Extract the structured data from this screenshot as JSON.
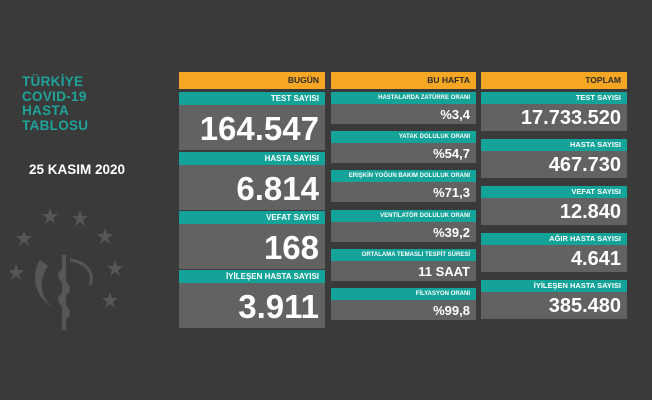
{
  "title_lines": [
    "TÜRKİYE",
    "COVID-19",
    "HASTA",
    "TABLOSU"
  ],
  "date": "25 KASIM 2020",
  "colors": {
    "accent": "#f5a623",
    "teal": "#13a398",
    "value_bg": "#626262",
    "title": "#1fa39a"
  },
  "today": {
    "header": "BUGÜN",
    "items": [
      {
        "label": "TEST SAYISI",
        "value": "164.547"
      },
      {
        "label": "HASTA SAYISI",
        "value": "6.814"
      },
      {
        "label": "VEFAT SAYISI",
        "value": "168"
      },
      {
        "label": "İYİLEŞEN HASTA SAYISI",
        "value": "3.911"
      }
    ]
  },
  "week": {
    "header": "BU HAFTA",
    "items": [
      {
        "label": "HASTALARDA ZATÜRRE ORANI",
        "value": "%3,4"
      },
      {
        "label": "YATAK DOLULUK ORANI",
        "value": "%54,7"
      },
      {
        "label": "ERİŞKİN YOĞUN BAKIM DOLULUK ORANI",
        "value": "%71,3"
      },
      {
        "label": "VENTİLATÖR DOLULUK ORANI",
        "value": "%39,2"
      },
      {
        "label": "ORTALAMA TEMASLI TESPİT SÜRESİ",
        "value": "11 SAAT"
      },
      {
        "label": "FİLYASYON ORANI",
        "value": "%99,8"
      }
    ]
  },
  "total": {
    "header": "TOPLAM",
    "items": [
      {
        "label": "TEST SAYISI",
        "value": "17.733.520"
      },
      {
        "label": "HASTA SAYISI",
        "value": "467.730"
      },
      {
        "label": "VEFAT SAYISI",
        "value": "12.840"
      },
      {
        "label": "AĞIR HASTA SAYISI",
        "value": "4.641"
      },
      {
        "label": "İYİLEŞEN HASTA SAYISI",
        "value": "385.480"
      }
    ]
  }
}
